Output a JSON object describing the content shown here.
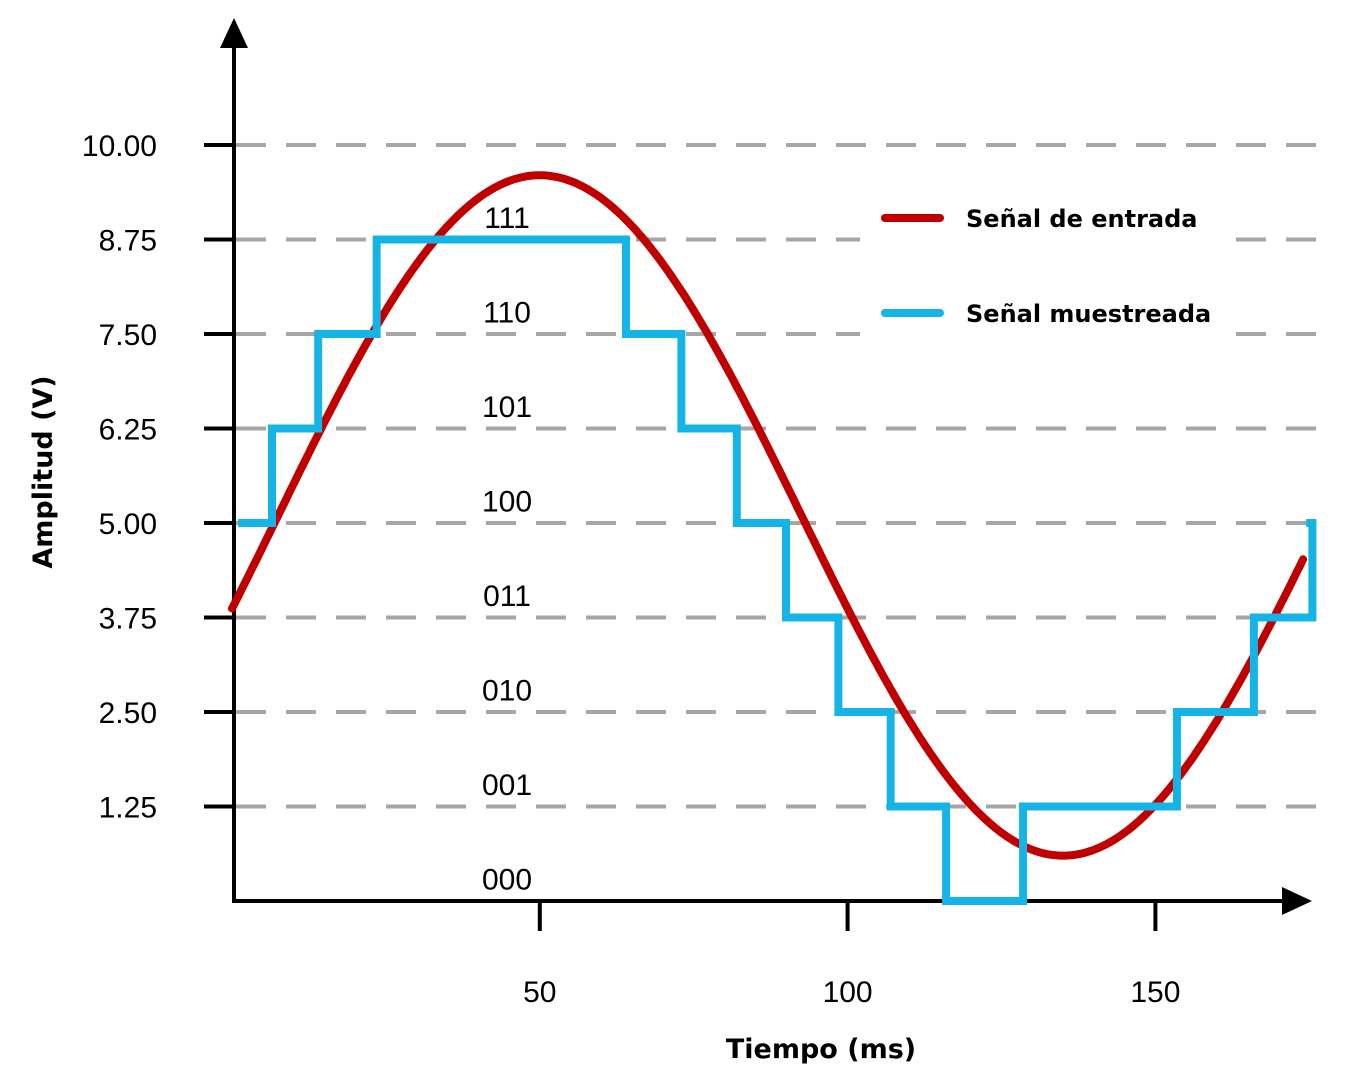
{
  "chart_data": {
    "type": "line",
    "xlabel": "Tiempo (ms)",
    "ylabel": "Amplitud (V)",
    "xlim": [
      0,
      180
    ],
    "ylim": [
      0,
      11.5
    ],
    "x_ticks": [
      50,
      100,
      150
    ],
    "y_ticks": [
      1.25,
      2.5,
      3.75,
      5,
      6.25,
      7.5,
      8.75,
      10
    ],
    "y_tick_labels": [
      "1.25",
      "2.50",
      "3.75",
      "5.00",
      "6.25",
      "7.50",
      "8.75",
      "10.00"
    ],
    "grid": "horizontal dashed",
    "quantization_codes": [
      {
        "label": "000",
        "y": 0.3
      },
      {
        "label": "001",
        "y": 1.55
      },
      {
        "label": "010",
        "y": 2.8
      },
      {
        "label": "011",
        "y": 4.05
      },
      {
        "label": "100",
        "y": 5.3
      },
      {
        "label": "101",
        "y": 6.55
      },
      {
        "label": "110",
        "y": 7.8
      },
      {
        "label": "111",
        "y": 9.05
      }
    ],
    "legend_position": "top-right",
    "series": [
      {
        "name": "Señal de entrada",
        "color": "#C00000",
        "style": "sine",
        "x_start": 0,
        "x_end": 174,
        "offset": 5.1,
        "amplitude": 4.5,
        "period_ms": 170,
        "phase_shift_ms": 7.5
      },
      {
        "name": "Señal muestreada",
        "color": "#14B4E6",
        "style": "step",
        "x": [
          1,
          6.5,
          14,
          23.5,
          64,
          73,
          82,
          90,
          98.5,
          107,
          116,
          128.5,
          153.5,
          166,
          175.5,
          174.5
        ],
        "y": [
          5,
          6.25,
          7.5,
          8.75,
          7.5,
          6.25,
          5,
          3.75,
          2.5,
          1.25,
          0,
          1.25,
          2.5,
          3.75,
          5,
          5
        ]
      }
    ]
  }
}
